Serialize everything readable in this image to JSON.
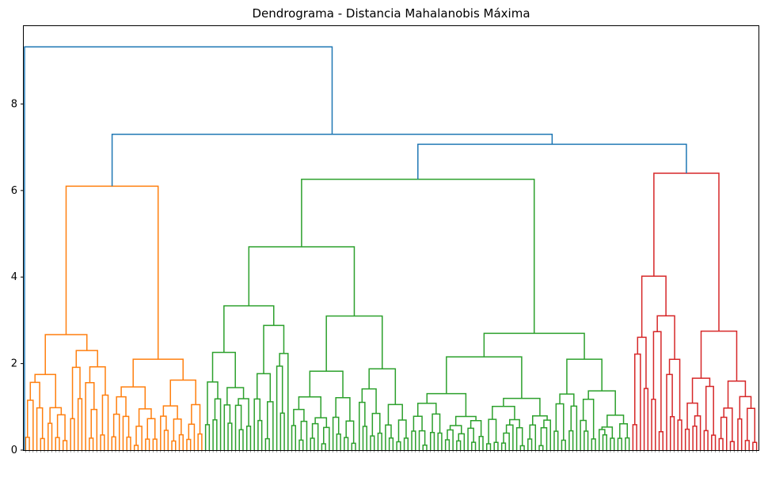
{
  "chart_data": {
    "type": "dendrogram",
    "title": "Dendrograma - Distancia Mahalanobis Máxima",
    "xlabel": "",
    "ylabel": "",
    "ylim": [
      0,
      9.8
    ],
    "yticks": [
      0,
      2,
      4,
      6,
      8
    ],
    "grid": false,
    "colors": {
      "root": "#1f77b4",
      "cluster_1": "#ff7f0e",
      "cluster_2": "#2ca02c",
      "cluster_3": "#d62728"
    },
    "clusters": [
      {
        "color": "#ff7f0e",
        "leaf_count": 48,
        "merge_heights": [
          2.95,
          2.67,
          2.05,
          1.85,
          1.05,
          0.55,
          4.25,
          3.3,
          2.1,
          1.35,
          0.9,
          3.1,
          2.25,
          1.45,
          1.0,
          6.1,
          4.62,
          3.08,
          2.5,
          2.03,
          1.7,
          3.1,
          2.65,
          2.0,
          1.48,
          1.0
        ]
      },
      {
        "color": "#2ca02c",
        "leaf_count": 114,
        "merge_heights": [
          6.26,
          4.7,
          3.62,
          3.42,
          2.42,
          1.98,
          1.5,
          4.13,
          2.7,
          2.4,
          1.5,
          3.64,
          2.8,
          2.05,
          1.4,
          5.23,
          4.55,
          3.52,
          2.79,
          2.2,
          1.6,
          1.2,
          3.02,
          2.3,
          1.9,
          1.45,
          2.45,
          1.9,
          1.45,
          3.82,
          2.9,
          2.65,
          2.25,
          1.7,
          3.58,
          2.98,
          2.15,
          1.9,
          1.5
        ]
      },
      {
        "color": "#d62728",
        "leaf_count": 34,
        "merge_heights": [
          6.4,
          4.02,
          3.26,
          2.5,
          2.15,
          1.75,
          1.0,
          3.65,
          2.75,
          1.45,
          5.68,
          4.65,
          4.05,
          3.2,
          2.35,
          3.48,
          2.8,
          2.1,
          1.5
        ]
      }
    ],
    "root_merges": [
      {
        "height": 9.32,
        "joins": [
          "cluster_1 + 2 + 3 group",
          "all"
        ]
      },
      {
        "height": 7.3,
        "joins": [
          "cluster_1",
          "cluster_2 + cluster_3"
        ]
      },
      {
        "height": 7.07,
        "joins": [
          "cluster_2",
          "cluster_3"
        ]
      }
    ]
  }
}
